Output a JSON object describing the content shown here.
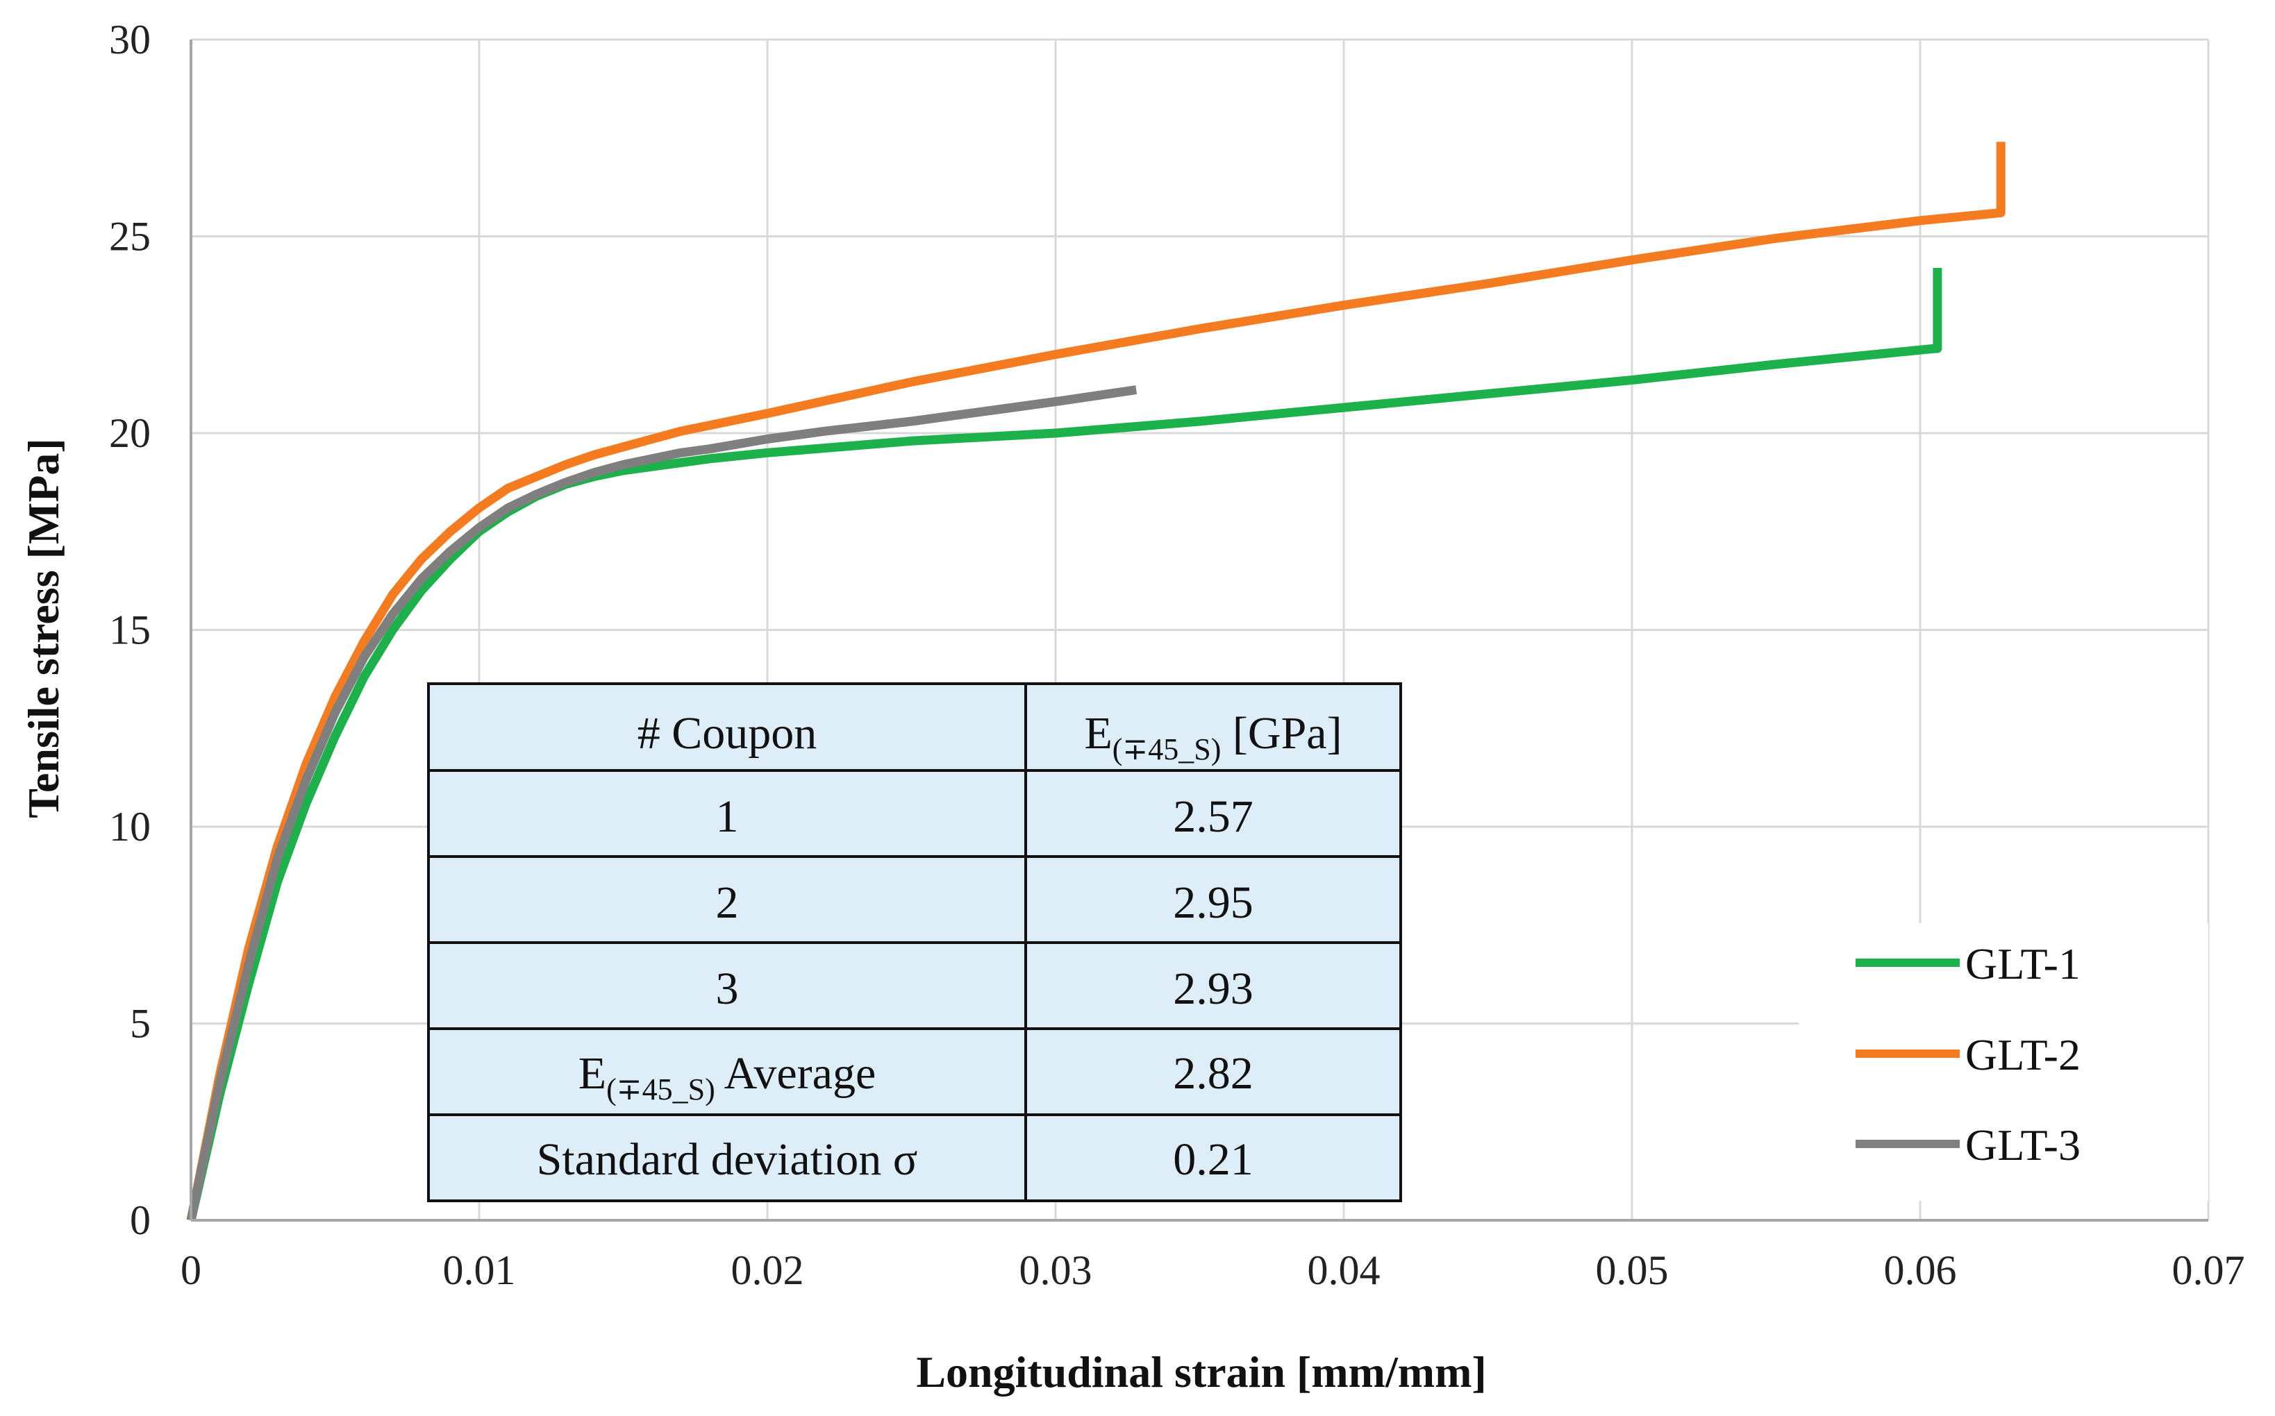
{
  "chart_data": {
    "type": "line",
    "title": "",
    "xlabel": "Longitudinal strain [mm/mm]",
    "ylabel": "Tensile stress [MPa]",
    "xlim": [
      0,
      0.07
    ],
    "ylim": [
      0,
      30
    ],
    "x_ticks": [
      "0",
      "0.01",
      "0.02",
      "0.03",
      "0.04",
      "0.05",
      "0.06",
      "0.07"
    ],
    "y_ticks": [
      "0",
      "5",
      "10",
      "15",
      "20",
      "25",
      "30"
    ],
    "grid": "both",
    "legend_position": "bottom-right",
    "series": [
      {
        "name": "GLT-1",
        "color": "#1DB14B",
        "x": [
          0,
          0.001,
          0.002,
          0.003,
          0.004,
          0.005,
          0.006,
          0.007,
          0.008,
          0.009,
          0.01,
          0.011,
          0.012,
          0.013,
          0.014,
          0.015,
          0.016,
          0.017,
          0.018,
          0.02,
          0.025,
          0.03,
          0.035,
          0.04,
          0.045,
          0.05,
          0.055,
          0.0605,
          0.0606,
          0.0606
        ],
        "y": [
          0,
          3.2,
          6.0,
          8.6,
          10.6,
          12.3,
          13.8,
          15.0,
          16.0,
          16.8,
          17.5,
          18.0,
          18.4,
          18.7,
          18.9,
          19.05,
          19.15,
          19.25,
          19.35,
          19.5,
          19.8,
          20.0,
          20.3,
          20.65,
          21.0,
          21.35,
          21.75,
          22.15,
          22.15,
          24.2
        ]
      },
      {
        "name": "GLT-2",
        "color": "#F47B20",
        "x": [
          0,
          0.001,
          0.002,
          0.003,
          0.004,
          0.005,
          0.006,
          0.007,
          0.008,
          0.009,
          0.01,
          0.011,
          0.012,
          0.013,
          0.014,
          0.015,
          0.016,
          0.017,
          0.018,
          0.02,
          0.025,
          0.03,
          0.035,
          0.04,
          0.045,
          0.05,
          0.055,
          0.06,
          0.0628,
          0.0628,
          0.0628
        ],
        "y": [
          0,
          3.7,
          6.9,
          9.5,
          11.6,
          13.3,
          14.7,
          15.9,
          16.8,
          17.5,
          18.1,
          18.6,
          18.9,
          19.2,
          19.45,
          19.65,
          19.85,
          20.05,
          20.2,
          20.5,
          21.3,
          22.0,
          22.65,
          23.25,
          23.8,
          24.4,
          24.95,
          25.4,
          25.6,
          25.6,
          27.4
        ]
      },
      {
        "name": "GLT-3",
        "color": "#7F7F7F",
        "x": [
          0,
          0.001,
          0.002,
          0.003,
          0.004,
          0.005,
          0.006,
          0.007,
          0.008,
          0.009,
          0.01,
          0.011,
          0.012,
          0.013,
          0.014,
          0.015,
          0.016,
          0.017,
          0.018,
          0.02,
          0.022,
          0.025,
          0.028,
          0.03,
          0.0328
        ],
        "y": [
          0,
          3.5,
          6.5,
          9.2,
          11.2,
          12.9,
          14.3,
          15.4,
          16.3,
          17.0,
          17.6,
          18.1,
          18.45,
          18.75,
          19.0,
          19.2,
          19.35,
          19.5,
          19.6,
          19.85,
          20.05,
          20.3,
          20.6,
          20.8,
          21.1
        ]
      }
    ],
    "table": {
      "headers": [
        "# Coupon",
        "E",
        "(∓45_S)",
        " [GPa]"
      ],
      "rows": [
        [
          "1",
          "2.57"
        ],
        [
          "2",
          "2.95"
        ],
        [
          "3",
          "2.93"
        ]
      ],
      "average_label": [
        "E",
        "(∓45_S)",
        " Average"
      ],
      "average_value": "2.82",
      "std_label": "Standard deviation σ",
      "std_value": "0.21"
    }
  }
}
